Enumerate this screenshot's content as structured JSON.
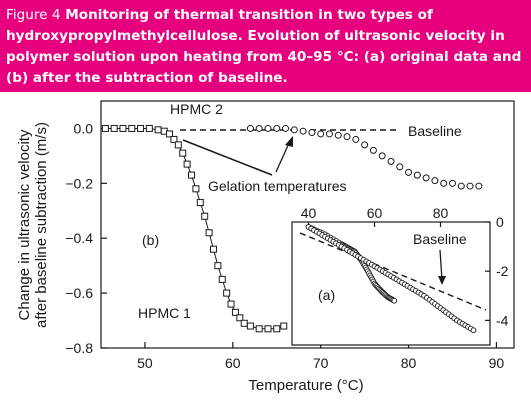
{
  "caption": {
    "label": "Figure 4",
    "text": "Monitoring of thermal transition in two types of hydroxypropylmethylcellulose. Evolution of ultrasonic velocity in polymer solution upon heating from 40–95 °C: (a) original data and (b) after the subtraction of baseline."
  },
  "colors": {
    "caption_background": "#e6007e",
    "caption_text": "#ffffff",
    "ink": "#1a1a1a"
  },
  "chart_data": [
    {
      "type": "scatter",
      "panel": "(b)",
      "xlabel": "Temperature (°C)",
      "ylabel_line1": "Change in ultrasonic velocity",
      "ylabel_line2": "after baseline subtraction (m/s)",
      "xlim": [
        45,
        92
      ],
      "ylim": [
        -0.8,
        0.1
      ],
      "xticks": [
        50,
        60,
        70,
        80,
        90
      ],
      "yticks": [
        0.0,
        -0.2,
        -0.4,
        -0.6,
        -0.8
      ],
      "ytick_labels": [
        "0.0",
        "−0.2",
        "−0.4",
        "−0.6",
        "−0.8"
      ],
      "panel_label": "(b)",
      "baseline_label": "Baseline",
      "annotation": "Gelation temperatures",
      "series": [
        {
          "name": "HPMC 1",
          "marker": "square",
          "x": [
            45.5,
            46.5,
            47.5,
            48.5,
            49.5,
            50.5,
            51.5,
            52.2,
            52.8,
            53.3,
            53.8,
            54.3,
            54.8,
            55.3,
            55.8,
            56.3,
            56.8,
            57.3,
            57.8,
            58.3,
            58.8,
            59.3,
            59.8,
            60.3,
            60.8,
            61.3,
            62.0,
            63.0,
            64.0,
            65.0,
            65.8
          ],
          "y": [
            0.0,
            0.0,
            0.0,
            0.0,
            0.0,
            0.0,
            -0.005,
            -0.01,
            -0.02,
            -0.04,
            -0.06,
            -0.09,
            -0.13,
            -0.17,
            -0.22,
            -0.27,
            -0.32,
            -0.38,
            -0.44,
            -0.5,
            -0.55,
            -0.6,
            -0.64,
            -0.67,
            -0.69,
            -0.71,
            -0.72,
            -0.73,
            -0.73,
            -0.73,
            -0.72
          ]
        },
        {
          "name": "HPMC 2",
          "marker": "circle",
          "x": [
            62,
            63,
            64,
            65,
            66,
            67,
            68,
            69,
            70,
            71,
            72,
            73,
            74,
            75,
            76,
            77,
            78,
            79,
            80,
            81,
            82,
            83,
            84,
            85,
            86,
            87,
            88
          ],
          "y": [
            0.0,
            0.0,
            0.0,
            0.0,
            0.0,
            -0.005,
            -0.01,
            -0.015,
            -0.02,
            -0.02,
            -0.025,
            -0.03,
            -0.04,
            -0.06,
            -0.08,
            -0.1,
            -0.12,
            -0.14,
            -0.16,
            -0.17,
            -0.18,
            -0.19,
            -0.2,
            -0.2,
            -0.21,
            -0.21,
            -0.21
          ]
        }
      ]
    },
    {
      "type": "scatter",
      "panel": "(a)",
      "inset": true,
      "panel_label": "(a)",
      "baseline_label": "Baseline",
      "xlim": [
        35,
        95
      ],
      "ylim": [
        -5,
        0
      ],
      "xticks_top": [
        40,
        60,
        80
      ],
      "yticks_right": [
        0,
        -2,
        -4
      ],
      "ytick_labels": [
        "0",
        "-2",
        "-4"
      ],
      "series": [
        {
          "name": "HPMC 1",
          "marker": "circle",
          "x": [
            40,
            45,
            50,
            52,
            54,
            56,
            58,
            60,
            62,
            64,
            66
          ],
          "y": [
            -0.2,
            -0.5,
            -0.9,
            -1.05,
            -1.2,
            -1.55,
            -2.0,
            -2.5,
            -2.8,
            -3.05,
            -3.2
          ]
        },
        {
          "name": "HPMC 2",
          "marker": "circle",
          "x": [
            40,
            45,
            50,
            55,
            60,
            65,
            70,
            75,
            80,
            85,
            90
          ],
          "y": [
            -0.2,
            -0.6,
            -1.0,
            -1.4,
            -1.8,
            -2.2,
            -2.6,
            -3.0,
            -3.5,
            -4.0,
            -4.4
          ]
        }
      ]
    }
  ]
}
